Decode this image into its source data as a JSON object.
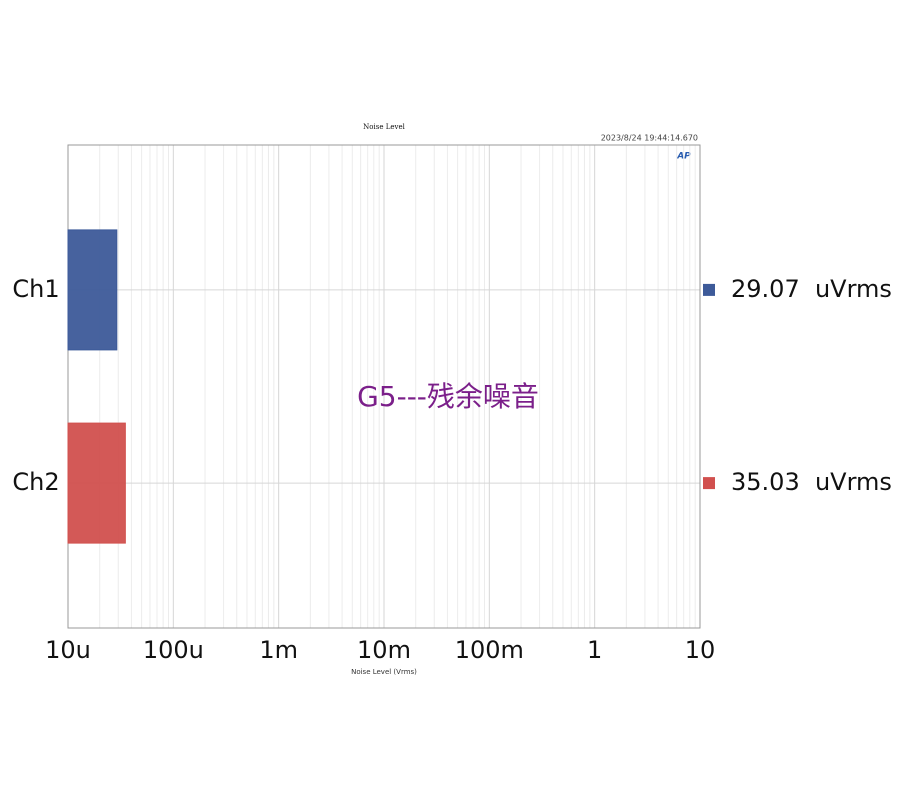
{
  "chart_data": {
    "type": "bar",
    "orientation": "horizontal",
    "title": "Noise Level",
    "timestamp": "2023/8/24 19:44:14.670",
    "logo": "AP",
    "annotation": "G5---残余噪音",
    "xlabel": "Noise Level (Vrms)",
    "categories": [
      "Ch1",
      "Ch2"
    ],
    "values": [
      2.907e-05,
      3.503e-05
    ],
    "value_labels": [
      "29.07  uVrms",
      "35.03  uVrms"
    ],
    "colors": [
      "#3d5a99",
      "#d1504e"
    ],
    "xscale": "log",
    "xlim": [
      1e-05,
      10
    ],
    "xticks": [
      {
        "value": 1e-05,
        "label": "10u"
      },
      {
        "value": 0.0001,
        "label": "100u"
      },
      {
        "value": 0.001,
        "label": "1m"
      },
      {
        "value": 0.01,
        "label": "10m"
      },
      {
        "value": 0.1,
        "label": "100m"
      },
      1,
      10
    ],
    "grid": true
  }
}
